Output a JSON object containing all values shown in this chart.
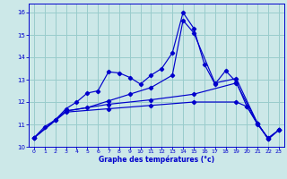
{
  "title": "Graphe des températures (°c)",
  "background_color": "#cce8e8",
  "grid_color": "#99cccc",
  "line_color": "#0000cc",
  "xlim": [
    -0.5,
    23.5
  ],
  "ylim": [
    10,
    16.4
  ],
  "xticks": [
    0,
    1,
    2,
    3,
    4,
    5,
    6,
    7,
    8,
    9,
    10,
    11,
    12,
    13,
    14,
    15,
    16,
    17,
    18,
    19,
    20,
    21,
    22,
    23
  ],
  "yticks": [
    10,
    11,
    12,
    13,
    14,
    15,
    16
  ],
  "lines": [
    {
      "x": [
        0,
        1,
        2,
        3,
        4,
        5,
        6,
        7,
        8,
        9,
        10,
        11,
        12,
        13,
        14,
        15,
        16,
        17,
        18,
        19,
        20,
        21,
        22,
        23
      ],
      "y": [
        10.4,
        10.9,
        11.2,
        11.7,
        12.0,
        12.4,
        12.5,
        13.35,
        13.3,
        13.1,
        12.8,
        13.2,
        13.5,
        14.2,
        16.0,
        15.3,
        13.7,
        12.8,
        13.4,
        12.9,
        11.8,
        11.0,
        10.4,
        10.75
      ]
    },
    {
      "x": [
        0,
        2,
        3,
        5,
        7,
        9,
        11,
        13,
        14,
        15,
        17,
        19,
        21,
        22,
        23
      ],
      "y": [
        10.4,
        11.2,
        11.6,
        11.75,
        12.05,
        12.35,
        12.65,
        13.2,
        15.65,
        15.1,
        12.85,
        13.05,
        11.05,
        10.35,
        10.75
      ]
    },
    {
      "x": [
        0,
        3,
        7,
        11,
        15,
        19,
        21,
        22,
        23
      ],
      "y": [
        10.4,
        11.6,
        11.9,
        12.1,
        12.35,
        12.85,
        11.05,
        10.35,
        10.75
      ]
    },
    {
      "x": [
        0,
        3,
        7,
        11,
        15,
        19,
        20,
        21,
        22,
        23
      ],
      "y": [
        10.4,
        11.55,
        11.7,
        11.85,
        12.0,
        12.0,
        11.8,
        11.05,
        10.35,
        10.75
      ]
    }
  ]
}
